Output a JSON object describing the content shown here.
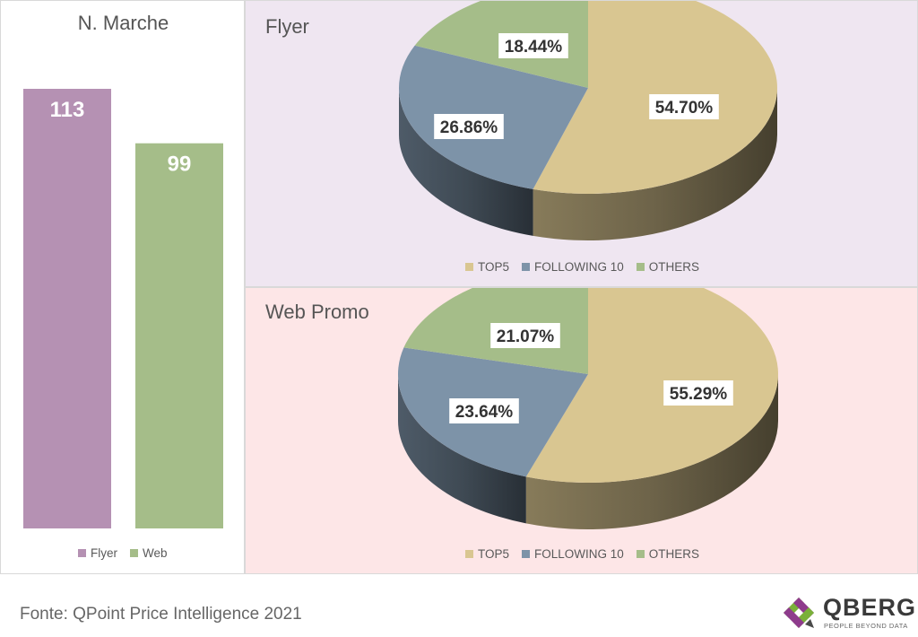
{
  "colors": {
    "flyer": "#b591b3",
    "web": "#a5bd89",
    "top5": "#d9c691",
    "following10": "#7d93a8",
    "others": "#a5bd89",
    "flyer_panel_bg": "#efe6f1",
    "web_panel_bg": "#fde6e7"
  },
  "chart_data": [
    {
      "type": "bar",
      "title": "N. Marche",
      "categories": [
        "Flyer",
        "Web"
      ],
      "values": [
        113,
        99
      ],
      "value_labels": [
        "113",
        "99"
      ],
      "legend": [
        "Flyer",
        "Web"
      ],
      "legend_position": "bottom"
    },
    {
      "type": "pie",
      "title": "Flyer",
      "categories": [
        "TOP5",
        "FOLLOWING 10",
        "OTHERS"
      ],
      "values": [
        54.7,
        26.86,
        18.44
      ],
      "value_labels": [
        "54.70%",
        "26.86%",
        "18.44%"
      ],
      "legend_position": "bottom",
      "style": "3d"
    },
    {
      "type": "pie",
      "title": "Web Promo",
      "categories": [
        "TOP5",
        "FOLLOWING 10",
        "OTHERS"
      ],
      "values": [
        55.29,
        23.64,
        21.07
      ],
      "value_labels": [
        "55.29%",
        "23.64%",
        "21.07%"
      ],
      "legend_position": "bottom",
      "style": "3d"
    }
  ],
  "footer": {
    "source": "Fonte: QPoint Price Intelligence 2021"
  },
  "logo": {
    "word": "QBERG",
    "tagline": "PEOPLE BEYOND DATA"
  }
}
